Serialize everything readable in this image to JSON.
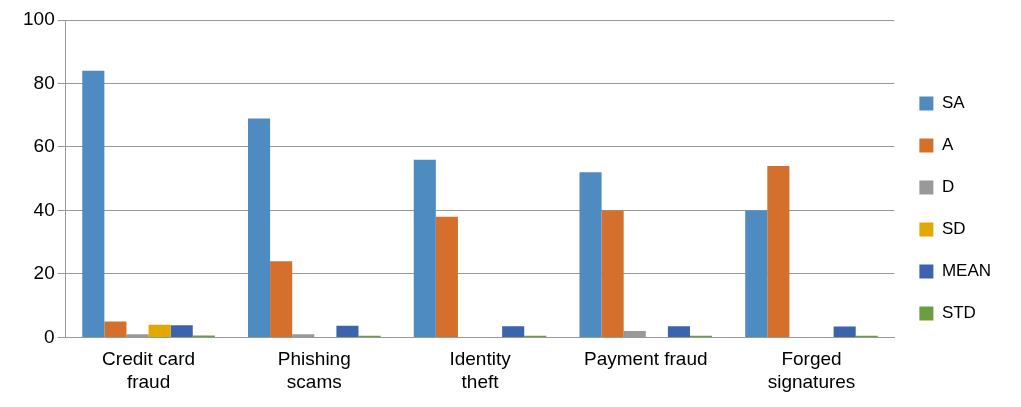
{
  "chart_data": {
    "type": "bar",
    "categories": [
      "Credit card fraud",
      "Phishing scams",
      "Identity theft",
      "Payment fraud",
      "Forged signatures"
    ],
    "series": [
      {
        "name": "SA",
        "color": "#4e8bc0",
        "values": [
          84,
          69,
          56,
          52,
          40
        ]
      },
      {
        "name": "A",
        "color": "#d4702b",
        "values": [
          5,
          24,
          38,
          40,
          54
        ]
      },
      {
        "name": "D",
        "color": "#999999",
        "values": [
          1,
          1,
          0,
          2,
          0
        ]
      },
      {
        "name": "SD",
        "color": "#e0a800",
        "values": [
          4,
          0,
          0,
          0,
          0
        ]
      },
      {
        "name": "MEAN",
        "color": "#3c63ad",
        "values": [
          3.8,
          3.7,
          3.5,
          3.5,
          3.4
        ]
      },
      {
        "name": "STD",
        "color": "#6a9f40",
        "values": [
          0.6,
          0.5,
          0.5,
          0.5,
          0.5
        ]
      }
    ],
    "ylim": [
      0,
      100
    ],
    "yticks": [
      0,
      20,
      40,
      60,
      80,
      100
    ],
    "grid": "y",
    "legend": "right"
  }
}
